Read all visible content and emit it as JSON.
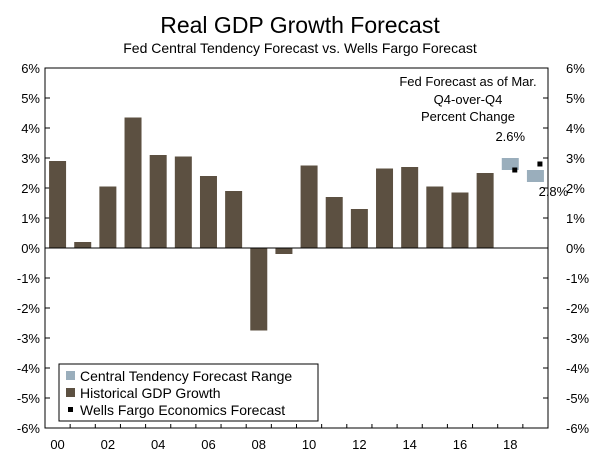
{
  "chart_data": {
    "type": "bar",
    "title": "Real GDP Growth Forecast",
    "subtitle": "Fed Central Tendency Forecast vs. Wells Fargo Forecast",
    "annotation": [
      "Fed Forecast as of Mar.",
      "Q4-over-Q4",
      "Percent Change"
    ],
    "ylim": [
      -6,
      6
    ],
    "y_ticks": [
      "6%",
      "5%",
      "4%",
      "3%",
      "2%",
      "1%",
      "0%",
      "-1%",
      "-2%",
      "-3%",
      "-4%",
      "-5%",
      "-6%"
    ],
    "x_tick_labels": [
      "00",
      "02",
      "04",
      "06",
      "08",
      "10",
      "12",
      "14",
      "16",
      "18"
    ],
    "categories": [
      "2000",
      "2001",
      "2002",
      "2003",
      "2004",
      "2005",
      "2006",
      "2007",
      "2008",
      "2009",
      "2010",
      "2011",
      "2012",
      "2013",
      "2014",
      "2015",
      "2016",
      "2017",
      "2018",
      "2019"
    ],
    "series": [
      {
        "name": "Historical GDP Growth",
        "color": "#5c5041",
        "values": [
          2.9,
          0.2,
          2.05,
          4.35,
          3.1,
          3.05,
          2.4,
          1.9,
          -2.75,
          -0.2,
          2.75,
          1.7,
          1.3,
          2.65,
          2.7,
          2.05,
          1.85,
          2.5,
          null,
          null
        ]
      },
      {
        "name": "Central Tendency Forecast Range",
        "color": "#9aaebc",
        "ranges": [
          null,
          null,
          null,
          null,
          null,
          null,
          null,
          null,
          null,
          null,
          null,
          null,
          null,
          null,
          null,
          null,
          null,
          null,
          [
            2.6,
            3.0
          ],
          [
            2.2,
            2.6
          ]
        ]
      },
      {
        "name": "Wells Fargo Economics Forecast",
        "color": "#000000",
        "values": [
          null,
          null,
          null,
          null,
          null,
          null,
          null,
          null,
          null,
          null,
          null,
          null,
          null,
          null,
          null,
          null,
          null,
          null,
          2.6,
          2.8
        ]
      }
    ],
    "data_labels": [
      {
        "text": "2.6%",
        "category": "2018"
      },
      {
        "text": "2.8%",
        "category": "2019"
      }
    ],
    "legend": {
      "placement": "bottom-left",
      "entries": [
        "Central Tendency Forecast Range",
        "Historical GDP Growth",
        "Wells Fargo Economics Forecast"
      ]
    },
    "grid": false
  }
}
